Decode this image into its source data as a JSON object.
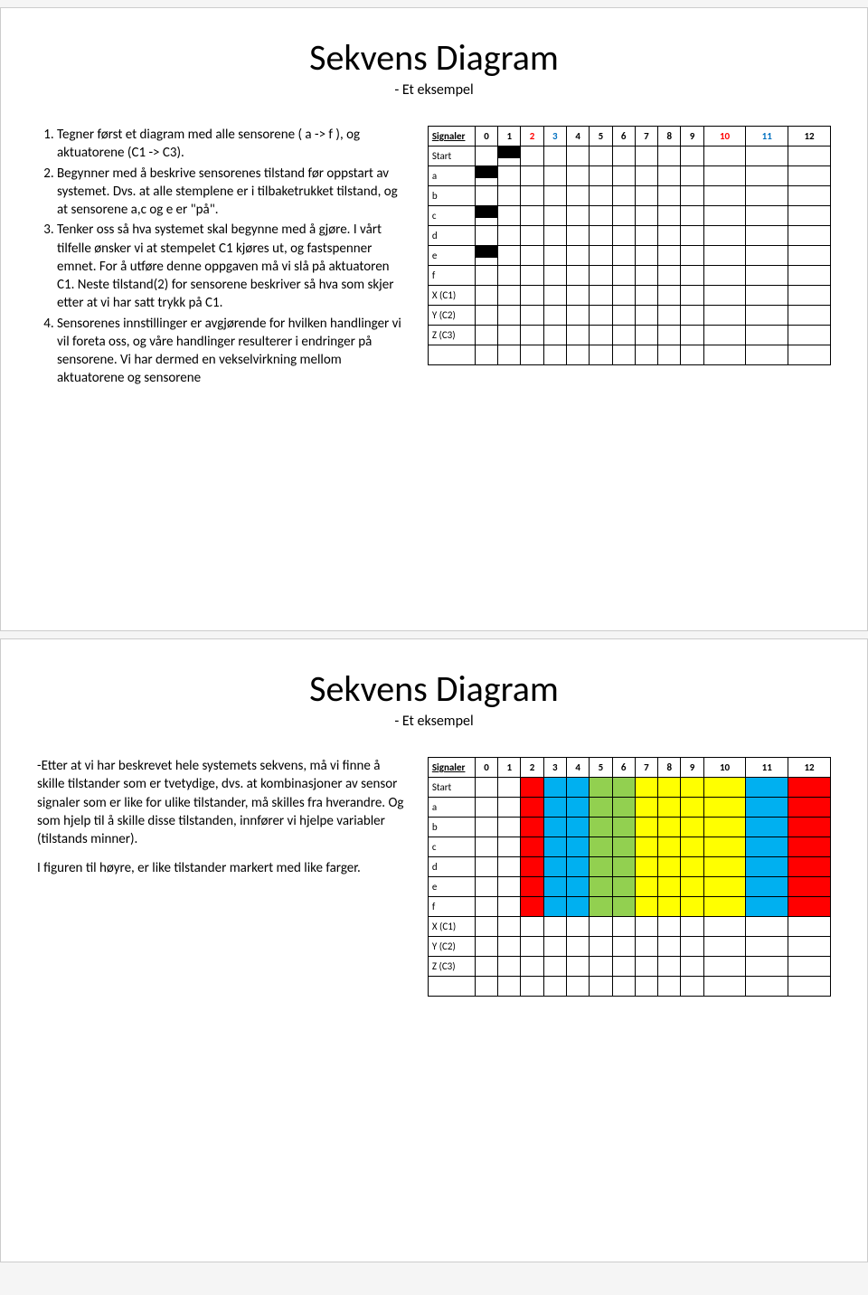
{
  "slide1": {
    "title": "Sekvens Diagram",
    "subtitle": "- Et eksempel",
    "list": [
      "Tegner først et diagram med alle sensorene ( a -> f ), og aktuatorene (C1 -> C3).",
      "Begynner med å beskrive sensorenes tilstand før oppstart av systemet. Dvs. at alle stemplene er i tilbaketrukket tilstand, og at sensorene a,c og e er \"på\".",
      "Tenker oss så hva systemet skal begynne med å gjøre. I vårt tilfelle ønsker vi at stempelet C1 kjøres ut, og fastspenner emnet. For å utføre denne oppgaven må vi slå på aktuatoren C1. Neste tilstand(2) for sensorene beskriver så hva som skjer etter at vi har satt trykk på C1.",
      "Sensorenes innstillinger er avgjørende for hvilken handlinger vi vil foreta oss, og våre handlinger resulterer i endringer på sensorene. Vi har dermed en vekselvirkning mellom aktuatorene og sensorene"
    ],
    "chart": {
      "header_label": "Signaler",
      "columns": [
        "0",
        "1",
        "2",
        "3",
        "4",
        "5",
        "6",
        "7",
        "8",
        "9",
        "10",
        "11",
        "12"
      ],
      "column_colors": [
        "#000000",
        "#000000",
        "#ff0000",
        "#0070c0",
        "#000000",
        "#000000",
        "#000000",
        "#000000",
        "#000000",
        "#000000",
        "#ff0000",
        "#0070c0",
        "#000000"
      ],
      "rows": [
        "Start",
        "a",
        "b",
        "c",
        "d",
        "e",
        "f",
        "X (C1)",
        "Y (C2)",
        "Z (C3)"
      ],
      "steps": {
        "Start": [
          1
        ],
        "a": [
          0
        ],
        "c": [
          0
        ],
        "e": [
          0
        ]
      },
      "cell_bg": "#ffffff",
      "border_color": "#000000",
      "font_size": 11
    }
  },
  "slide2": {
    "title": "Sekvens Diagram",
    "subtitle": "- Et eksempel",
    "para1": "-Etter at vi har beskrevet hele systemets sekvens, må vi finne å skille tilstander som er tvetydige, dvs. at kombinasjoner av sensor signaler som er like for ulike tilstander, må skilles fra hverandre. Og som hjelp til å skille disse tilstanden, innfører vi hjelpe variabler (tilstands minner).",
    "para2": "I figuren til høyre, er like tilstander markert med like farger.",
    "chart": {
      "header_label": "Signaler",
      "columns": [
        "0",
        "1",
        "2",
        "3",
        "4",
        "5",
        "6",
        "7",
        "8",
        "9",
        "10",
        "11",
        "12"
      ],
      "rows": [
        "Start",
        "a",
        "b",
        "c",
        "d",
        "e",
        "f",
        "X (C1)",
        "Y (C2)",
        "Z (C3)"
      ],
      "highlight_rows_count": 7,
      "col_fills": {
        "2": "#ff0000",
        "3": "#00b0f0",
        "4": "#00b0f0",
        "5": "#92d050",
        "6": "#92d050",
        "7": "#ffff00",
        "8": "#ffff00",
        "9": "#ffff00",
        "10": "#ffff00",
        "11": "#00b0f0",
        "12": "#ff0000"
      },
      "cell_bg": "#ffffff",
      "border_color": "#000000",
      "font_size": 11
    }
  }
}
